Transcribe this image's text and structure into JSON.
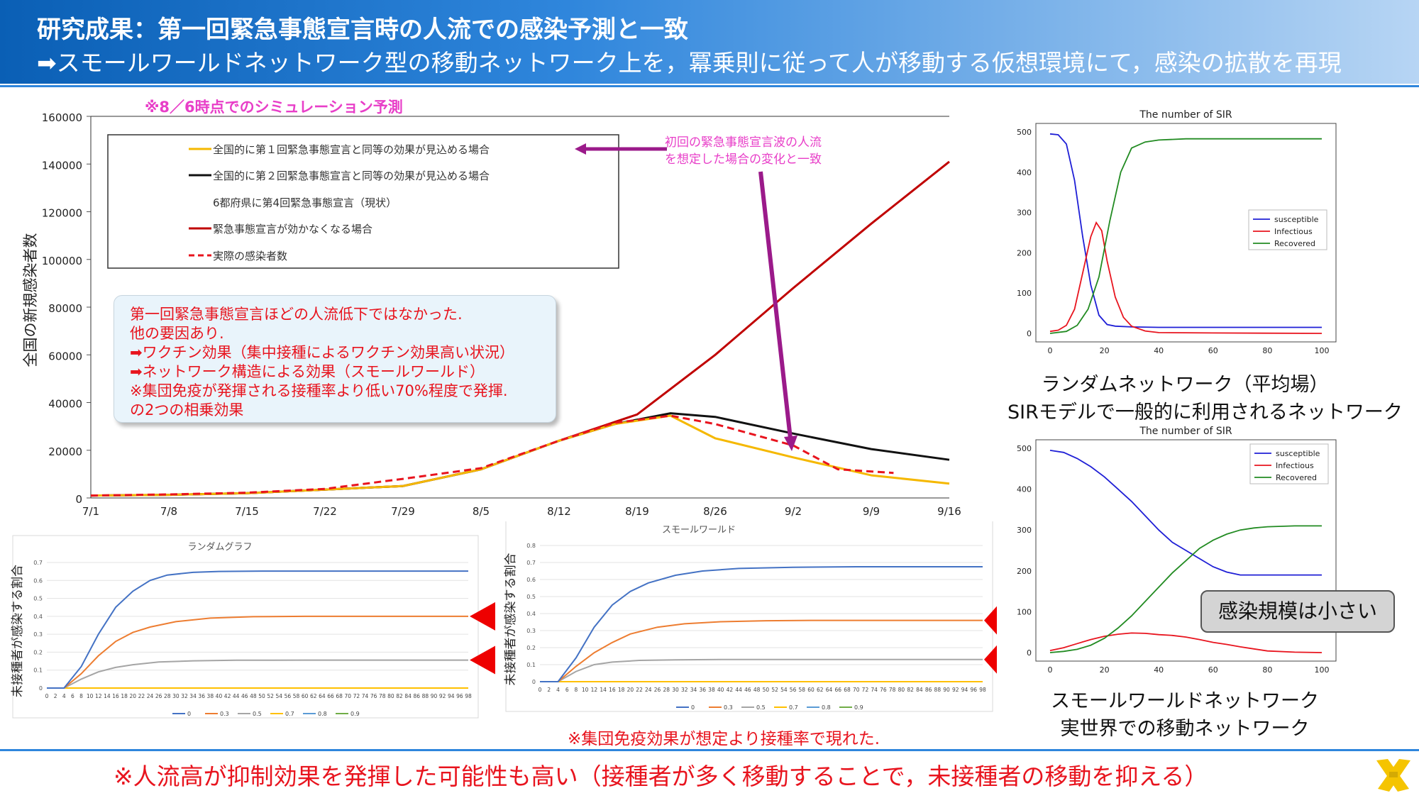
{
  "header": {
    "title": "研究成果：第一回緊急事態宣言時の人流での感染予測と一致",
    "subtitle": "➡スモールワールドネットワーク型の移動ネットワーク上を，冪乗則に従って人が移動する仮想環境にて，感染の拡散を再現"
  },
  "main_chart": {
    "note_title": "※8／6時点でのシミュレーション予測",
    "arrow_annotation": [
      "初回の緊急事態宣言波の人流",
      "を想定した場合の変化と一致"
    ]
  },
  "callout_lines": [
    "第一回緊急事態宣言ほどの人流低下ではなかった.",
    "他の要因あり.",
    "➡ワクチン効果（集中接種によるワクチン効果高い状況）",
    "➡ネットワーク構造による効果（スモールワールド）",
    "※集団免疫が発揮される接種率より低い70%程度で発揮.",
    "の2つの相乗効果"
  ],
  "captions": {
    "random_network": [
      "ランダムネットワーク（平均場）",
      "SIRモデルで一般的に利用されるネットワーク"
    ],
    "smallworld_network": [
      "スモールワールドネットワーク",
      "実世界での移動ネットワーク"
    ]
  },
  "badge": "感染規模は小さい",
  "note_bottom": "※集団免疫効果が想定より接種率で現れた.",
  "footer": "※人流高が抑制効果を発揮した可能性も高い（接種者が多く移動することで，未接種者の移動を抑える）",
  "colors": {
    "red": "#e8141e",
    "orange": "#f5b800",
    "black": "#111111",
    "darkred": "#c00000",
    "blue": "#2f86dc",
    "green": "#228b22",
    "purple": "#9b1a8a",
    "magenta": "#e83ec8"
  },
  "chart_data": [
    {
      "id": "main",
      "type": "line",
      "ylabel": "全国の新規感染者数",
      "ylim": [
        0,
        160000
      ],
      "yticks": [
        0,
        20000,
        40000,
        60000,
        80000,
        100000,
        120000,
        140000,
        160000
      ],
      "x_tick_labels": [
        "7/1",
        "7/8",
        "7/15",
        "7/22",
        "7/29",
        "8/5",
        "8/12",
        "8/19",
        "8/26",
        "9/2",
        "9/9",
        "9/16"
      ],
      "x_range_days": [
        0,
        77
      ],
      "legend": [
        {
          "label": "全国的に第１回緊急事態宣言と同等の効果が見込める場合",
          "color": "#f5b800",
          "style": "solid"
        },
        {
          "label": "全国的に第２回緊急事態宣言と同等の効果が見込める場合",
          "color": "#111111",
          "style": "solid"
        },
        {
          "label": "6都府県に第4回緊急事態宣言（現状）",
          "color": "",
          "style": "none"
        },
        {
          "label": "緊急事態宣言が効かなくなる場合",
          "color": "#c00000",
          "style": "solid"
        },
        {
          "label": "実際の感染者数",
          "color": "#e8141e",
          "style": "dashed"
        }
      ],
      "series": [
        {
          "name": "緊急事態宣言が効かなくなる場合",
          "x_days": [
            0,
            7,
            14,
            21,
            28,
            35,
            42,
            49,
            56,
            63,
            70,
            77
          ],
          "values": [
            1000,
            1300,
            2000,
            3500,
            5000,
            12000,
            24000,
            35000,
            60000,
            88000,
            115000,
            141000
          ]
        },
        {
          "name": "全国的に第２回緊急事態宣言と同等の効果が見込める場合",
          "x_days": [
            0,
            7,
            14,
            21,
            28,
            35,
            42,
            47,
            52,
            56,
            63,
            70,
            77
          ],
          "values": [
            1000,
            1300,
            2000,
            3500,
            5000,
            12000,
            24000,
            31000,
            35500,
            34000,
            27000,
            20500,
            16000
          ]
        },
        {
          "name": "全国的に第１回緊急事態宣言と同等の効果が見込める場合",
          "x_days": [
            0,
            7,
            14,
            21,
            28,
            35,
            42,
            47,
            52,
            56,
            63,
            70,
            77
          ],
          "values": [
            1000,
            1300,
            2000,
            3500,
            5000,
            12000,
            24000,
            31000,
            34500,
            25000,
            17000,
            9500,
            6000
          ]
        },
        {
          "name": "実際の感染者数",
          "x_days": [
            0,
            7,
            14,
            21,
            28,
            35,
            42,
            47,
            52,
            56,
            63,
            67,
            72
          ],
          "values": [
            1000,
            1500,
            2200,
            3800,
            8000,
            12500,
            24000,
            31500,
            34500,
            31000,
            22000,
            12000,
            10500
          ]
        }
      ]
    },
    {
      "id": "sir_random",
      "type": "line",
      "title": "The number of SIR",
      "xlim": [
        0,
        100
      ],
      "ylim": [
        0,
        500
      ],
      "xticks": [
        0,
        20,
        40,
        60,
        80,
        100
      ],
      "yticks": [
        0,
        100,
        200,
        300,
        400,
        500
      ],
      "legend_position": "right",
      "series": [
        {
          "name": "susceptible",
          "color": "#1f1fd6",
          "x": [
            0,
            3,
            6,
            9,
            12,
            15,
            18,
            21,
            24,
            30,
            40,
            60,
            80,
            100
          ],
          "values": [
            495,
            493,
            470,
            380,
            240,
            120,
            45,
            22,
            18,
            16,
            15,
            15,
            15,
            15
          ]
        },
        {
          "name": "Infectious",
          "color": "#e8141e",
          "x": [
            0,
            3,
            6,
            9,
            12,
            15,
            17,
            19,
            21,
            24,
            27,
            30,
            35,
            40,
            60,
            100
          ],
          "values": [
            5,
            8,
            20,
            60,
            150,
            240,
            275,
            255,
            180,
            90,
            40,
            18,
            6,
            2,
            1,
            0
          ]
        },
        {
          "name": "Recovered",
          "color": "#228b22",
          "x": [
            0,
            6,
            10,
            14,
            18,
            22,
            26,
            30,
            35,
            40,
            50,
            100
          ],
          "values": [
            0,
            5,
            20,
            60,
            140,
            280,
            400,
            460,
            475,
            480,
            483,
            483
          ]
        }
      ]
    },
    {
      "id": "sir_smallworld",
      "type": "line",
      "title": "The number of SIR",
      "xlim": [
        0,
        100
      ],
      "ylim": [
        0,
        500
      ],
      "xticks": [
        0,
        20,
        40,
        60,
        80,
        100
      ],
      "yticks": [
        0,
        100,
        200,
        300,
        400,
        500
      ],
      "legend_position": "top-right",
      "series": [
        {
          "name": "susceptible",
          "color": "#1f1fd6",
          "x": [
            0,
            5,
            10,
            15,
            20,
            25,
            30,
            35,
            40,
            45,
            50,
            55,
            60,
            65,
            70,
            80,
            90,
            100
          ],
          "values": [
            495,
            490,
            475,
            455,
            430,
            400,
            370,
            335,
            300,
            270,
            250,
            230,
            210,
            197,
            190,
            190,
            190,
            190
          ]
        },
        {
          "name": "Infectious",
          "color": "#e8141e",
          "x": [
            0,
            5,
            10,
            15,
            20,
            25,
            30,
            35,
            40,
            45,
            50,
            55,
            60,
            65,
            70,
            75,
            80,
            90,
            100
          ],
          "values": [
            5,
            12,
            22,
            32,
            40,
            45,
            48,
            47,
            44,
            42,
            38,
            32,
            25,
            20,
            14,
            9,
            4,
            1,
            0
          ]
        },
        {
          "name": "Recovered",
          "color": "#228b22",
          "x": [
            0,
            5,
            10,
            15,
            20,
            25,
            30,
            35,
            40,
            45,
            50,
            55,
            60,
            65,
            70,
            75,
            80,
            90,
            100
          ],
          "values": [
            0,
            3,
            8,
            18,
            35,
            60,
            90,
            125,
            160,
            195,
            225,
            255,
            275,
            290,
            300,
            305,
            308,
            310,
            310
          ]
        }
      ]
    },
    {
      "id": "random_graph",
      "type": "line",
      "title": "ランダムグラフ",
      "ylabel": "未接種者が感染する割合",
      "ylim": [
        0,
        0.7
      ],
      "yticks": [
        0,
        0.1,
        0.2,
        0.3,
        0.4,
        0.5,
        0.6,
        0.7
      ],
      "x_tick_labels": [
        "0",
        "2",
        "4",
        "6",
        "8",
        "10",
        "12",
        "14",
        "16",
        "18",
        "20",
        "22",
        "24",
        "26",
        "28",
        "30",
        "32",
        "34",
        "36",
        "38",
        "40",
        "42",
        "44",
        "46",
        "48",
        "50",
        "52",
        "54",
        "56",
        "58",
        "60",
        "62",
        "64",
        "66",
        "68",
        "70",
        "72",
        "74",
        "76",
        "78",
        "80",
        "82",
        "84",
        "86",
        "88",
        "90",
        "92",
        "94",
        "96",
        "98"
      ],
      "series": [
        {
          "name": "0",
          "color": "#4472c4",
          "x": [
            0,
            4,
            8,
            12,
            16,
            20,
            24,
            28,
            34,
            40,
            50,
            60,
            80,
            98
          ],
          "values": [
            0,
            0,
            0.12,
            0.3,
            0.45,
            0.54,
            0.6,
            0.63,
            0.645,
            0.65,
            0.652,
            0.652,
            0.652,
            0.652
          ]
        },
        {
          "name": "0.3",
          "color": "#ed7d31",
          "x": [
            0,
            4,
            8,
            12,
            16,
            20,
            24,
            30,
            38,
            48,
            60,
            80,
            98
          ],
          "values": [
            0,
            0,
            0.08,
            0.18,
            0.26,
            0.31,
            0.34,
            0.37,
            0.39,
            0.398,
            0.4,
            0.4,
            0.4
          ]
        },
        {
          "name": "0.5",
          "color": "#a5a5a5",
          "x": [
            0,
            4,
            8,
            12,
            16,
            20,
            26,
            34,
            44,
            60,
            80,
            98
          ],
          "values": [
            0,
            0,
            0.05,
            0.09,
            0.115,
            0.13,
            0.145,
            0.152,
            0.155,
            0.156,
            0.156,
            0.156
          ]
        },
        {
          "name": "0.7",
          "color": "#ffc000",
          "x": [
            0,
            98
          ],
          "values": [
            0,
            0
          ]
        },
        {
          "name": "0.8",
          "color": "#5b9bd5",
          "x": [
            0,
            98
          ],
          "values": [
            0,
            0
          ]
        },
        {
          "name": "0.9",
          "color": "#70ad47",
          "x": [
            0,
            98
          ],
          "values": [
            0,
            0
          ]
        }
      ]
    },
    {
      "id": "small_world",
      "type": "line",
      "title": "スモールワールド",
      "ylabel": "未接種者が感染する割合",
      "ylim": [
        0,
        0.8
      ],
      "yticks": [
        0,
        0.1,
        0.2,
        0.3,
        0.4,
        0.5,
        0.6,
        0.7,
        0.8
      ],
      "x_tick_labels": [
        "0",
        "2",
        "4",
        "6",
        "8",
        "10",
        "12",
        "14",
        "16",
        "18",
        "20",
        "22",
        "24",
        "26",
        "28",
        "30",
        "32",
        "34",
        "36",
        "38",
        "40",
        "42",
        "44",
        "46",
        "48",
        "50",
        "52",
        "54",
        "56",
        "58",
        "60",
        "62",
        "64",
        "66",
        "68",
        "70",
        "72",
        "74",
        "76",
        "78",
        "80",
        "82",
        "84",
        "86",
        "88",
        "90",
        "92",
        "94",
        "96",
        "98"
      ],
      "series": [
        {
          "name": "0",
          "color": "#4472c4",
          "x": [
            0,
            4,
            8,
            12,
            16,
            20,
            24,
            30,
            36,
            44,
            56,
            70,
            98
          ],
          "values": [
            0,
            0,
            0.14,
            0.32,
            0.45,
            0.53,
            0.58,
            0.625,
            0.65,
            0.665,
            0.672,
            0.675,
            0.675
          ]
        },
        {
          "name": "0.3",
          "color": "#ed7d31",
          "x": [
            0,
            4,
            8,
            12,
            16,
            20,
            26,
            32,
            40,
            50,
            60,
            80,
            98
          ],
          "values": [
            0,
            0,
            0.09,
            0.17,
            0.23,
            0.28,
            0.32,
            0.34,
            0.352,
            0.358,
            0.36,
            0.36,
            0.36
          ]
        },
        {
          "name": "0.5",
          "color": "#a5a5a5",
          "x": [
            0,
            4,
            8,
            12,
            16,
            22,
            30,
            40,
            60,
            98
          ],
          "values": [
            0,
            0,
            0.06,
            0.1,
            0.115,
            0.125,
            0.128,
            0.13,
            0.13,
            0.13
          ]
        },
        {
          "name": "0.7",
          "color": "#ffc000",
          "x": [
            0,
            98
          ],
          "values": [
            0,
            0
          ]
        },
        {
          "name": "0.8",
          "color": "#5b9bd5",
          "x": [
            0,
            98
          ],
          "values": [
            0,
            0
          ]
        },
        {
          "name": "0.9",
          "color": "#70ad47",
          "x": [
            0,
            98
          ],
          "values": [
            0,
            0
          ]
        }
      ]
    }
  ]
}
